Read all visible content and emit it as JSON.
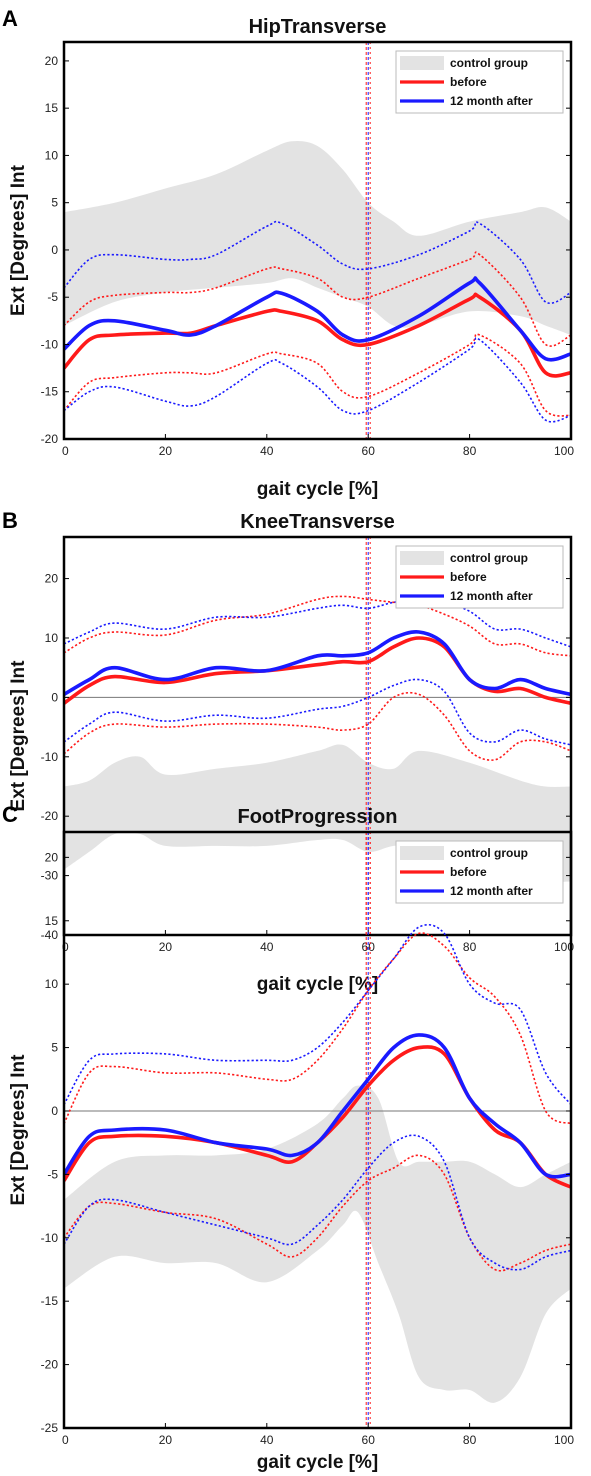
{
  "colors": {
    "before": "#ff1a1a",
    "after": "#1a1aff",
    "control": "#e3e3e3",
    "zero_line": "#777777",
    "frame": "#000000"
  },
  "chart_data": [
    {
      "panel": "A",
      "type": "line",
      "title": "HipTransverse",
      "xlabel": "gait cycle [%]",
      "ylabel": "Ext  [Degrees]  Int",
      "xlim": [
        0,
        100
      ],
      "ylim": [
        -20,
        22
      ],
      "xticks": [
        0,
        20,
        40,
        60,
        80,
        100
      ],
      "yticks": [
        -20,
        -15,
        -10,
        -5,
        0,
        5,
        10,
        15,
        20
      ],
      "grid": false,
      "legend": {
        "position": "top-right",
        "entries": [
          "control group",
          "before",
          "12 month after"
        ]
      },
      "vertical_marker_x": 60,
      "control_band": {
        "x": [
          0,
          10,
          20,
          30,
          40,
          45,
          50,
          55,
          60,
          65,
          70,
          80,
          90,
          95,
          100
        ],
        "upper": [
          4,
          5,
          6.5,
          8,
          10.5,
          11.5,
          11,
          8.5,
          5,
          3,
          1.5,
          3,
          4,
          4.5,
          3
        ],
        "lower": [
          -8,
          -5.5,
          -4.5,
          -4,
          -3.5,
          -3,
          -4,
          -5,
          -6,
          -8,
          -8,
          -6.5,
          -7,
          -8,
          -9
        ]
      },
      "series": [
        {
          "name": "before",
          "x": [
            0,
            5,
            10,
            20,
            25,
            30,
            40,
            43,
            50,
            55,
            60,
            70,
            80,
            82,
            90,
            95,
            100
          ],
          "mean": [
            -12.5,
            -9.5,
            -9,
            -8.8,
            -8.8,
            -8,
            -6.5,
            -6.5,
            -7.5,
            -9.5,
            -10,
            -8,
            -5.2,
            -5,
            -8.5,
            -13,
            -13
          ],
          "upper": [
            -8,
            -5.5,
            -4.8,
            -4.5,
            -4.5,
            -4,
            -2,
            -2,
            -3,
            -5,
            -5,
            -3,
            -1,
            -0.5,
            -5,
            -10,
            -9
          ],
          "lower": [
            -17,
            -14,
            -13.5,
            -13,
            -13,
            -13,
            -11,
            -11,
            -12,
            -15,
            -15.5,
            -13,
            -10,
            -9,
            -12,
            -17,
            -17.5
          ]
        },
        {
          "name": "12 month after",
          "x": [
            0,
            5,
            10,
            20,
            25,
            30,
            40,
            43,
            50,
            55,
            60,
            70,
            80,
            82,
            90,
            95,
            100
          ],
          "mean": [
            -10.5,
            -8,
            -7.5,
            -8.5,
            -9,
            -8,
            -5,
            -4.6,
            -6.5,
            -9,
            -9.5,
            -7,
            -3.5,
            -3.5,
            -8.5,
            -11.5,
            -11
          ],
          "upper": [
            -4,
            -1,
            -0.5,
            -1,
            -1,
            -0.5,
            2.5,
            2.8,
            0.5,
            -1.5,
            -2,
            -0.5,
            2,
            2.8,
            -1,
            -5.5,
            -4.5
          ],
          "lower": [
            -17,
            -15,
            -14.5,
            -16,
            -16.5,
            -15.5,
            -12,
            -12,
            -14.5,
            -17,
            -17,
            -14,
            -10.5,
            -9.5,
            -14,
            -18,
            -17.5
          ]
        }
      ]
    },
    {
      "panel": "B",
      "type": "line",
      "title": "KneeTransverse",
      "xlabel": "gait cycle [%]",
      "ylabel": "Ext  [Degrees]  Int",
      "xlim": [
        0,
        100
      ],
      "ylim": [
        -40,
        27
      ],
      "xticks": [
        0,
        20,
        40,
        60,
        80,
        100
      ],
      "yticks": [
        -40,
        -30,
        -20,
        -10,
        0,
        10,
        20
      ],
      "grid": false,
      "zero_line": true,
      "legend": {
        "position": "top-right",
        "entries": [
          "control group",
          "before",
          "12 month after"
        ]
      },
      "vertical_marker_x": 60,
      "control_band": {
        "x": [
          0,
          5,
          10,
          15,
          20,
          30,
          40,
          50,
          55,
          60,
          65,
          70,
          80,
          90,
          95,
          100
        ],
        "upper": [
          -15,
          -14,
          -11,
          -10,
          -13,
          -12,
          -11,
          -9,
          -8,
          -11,
          -12,
          -9,
          -11,
          -14,
          -15,
          -15
        ],
        "lower": [
          -29,
          -26,
          -23,
          -23,
          -25,
          -25,
          -25,
          -24,
          -24,
          -26,
          -25,
          -25,
          -27,
          -30,
          -31,
          -31
        ]
      },
      "series": [
        {
          "name": "before",
          "x": [
            0,
            5,
            10,
            20,
            30,
            40,
            50,
            55,
            60,
            65,
            70,
            75,
            80,
            85,
            90,
            95,
            100
          ],
          "mean": [
            -1,
            2,
            3.5,
            2.5,
            4,
            4.5,
            5.5,
            6,
            6,
            8.5,
            10,
            8.5,
            3,
            1,
            1.5,
            0,
            -1
          ],
          "upper": [
            7.5,
            10,
            11,
            10.5,
            13,
            14,
            16.5,
            17,
            16.5,
            16,
            15.5,
            14,
            12,
            9,
            9,
            7.5,
            7
          ],
          "lower": [
            -9.5,
            -6,
            -4.5,
            -5,
            -4.5,
            -4.5,
            -5,
            -5.5,
            -4.5,
            0,
            0.5,
            -3,
            -9,
            -10.5,
            -7.5,
            -7.5,
            -9
          ]
        },
        {
          "name": "12 month after",
          "x": [
            0,
            5,
            10,
            20,
            30,
            40,
            50,
            55,
            60,
            65,
            70,
            75,
            80,
            85,
            90,
            95,
            100
          ],
          "mean": [
            0.5,
            3,
            5,
            3,
            5,
            4.5,
            7,
            7,
            7.5,
            10,
            11,
            9,
            3,
            1.5,
            3,
            1.5,
            0.5
          ],
          "upper": [
            9,
            11,
            12.5,
            11.5,
            13.5,
            13.5,
            15,
            15.5,
            15,
            16,
            16.5,
            16,
            14.5,
            11.5,
            11.5,
            10,
            8.5
          ],
          "lower": [
            -7.5,
            -4.5,
            -2.5,
            -4,
            -3,
            -3.5,
            -2,
            -1.5,
            0,
            2,
            3,
            1,
            -6,
            -7.5,
            -5.5,
            -7,
            -8
          ]
        }
      ]
    },
    {
      "panel": "C",
      "type": "line",
      "title": "FootProgression",
      "xlabel": "gait cycle [%]",
      "ylabel": "Ext  [Degrees]  Int",
      "xlim": [
        0,
        100
      ],
      "ylim": [
        -25,
        22
      ],
      "xticks": [
        0,
        20,
        40,
        60,
        80,
        100
      ],
      "yticks": [
        -25,
        -20,
        -15,
        -10,
        -5,
        0,
        5,
        10,
        15,
        20
      ],
      "grid": false,
      "zero_line": true,
      "legend": {
        "position": "top-right",
        "entries": [
          "control group",
          "before",
          "12 month after"
        ]
      },
      "vertical_marker_x": 60,
      "control_band": {
        "x": [
          0,
          10,
          20,
          30,
          40,
          50,
          55,
          58,
          62,
          66,
          70,
          75,
          80,
          85,
          90,
          95,
          100
        ],
        "upper": [
          -7,
          -4,
          -3.5,
          -3.5,
          -3,
          -1,
          1,
          2,
          1,
          -4,
          -4,
          -4,
          -4,
          -5,
          -6,
          -5,
          -4
        ],
        "lower": [
          -14,
          -11.5,
          -12,
          -12,
          -13.5,
          -11,
          -9,
          -8,
          -12,
          -16,
          -21,
          -22,
          -22,
          -23,
          -21,
          -16,
          -14
        ]
      },
      "series": [
        {
          "name": "before",
          "x": [
            0,
            5,
            10,
            20,
            30,
            40,
            45,
            50,
            55,
            60,
            65,
            70,
            75,
            80,
            85,
            90,
            95,
            100
          ],
          "mean": [
            -5.5,
            -2.5,
            -2,
            -2,
            -2.5,
            -3.5,
            -4,
            -2.5,
            -0.5,
            2,
            4,
            5,
            4.5,
            1,
            -1.5,
            -2.5,
            -5,
            -6
          ],
          "upper": [
            -1,
            3,
            3.5,
            3,
            3,
            2.5,
            2.5,
            4,
            6.5,
            9.5,
            12,
            14,
            13,
            10.5,
            9,
            6,
            0,
            -1
          ],
          "lower": [
            -10,
            -7.5,
            -7.3,
            -8,
            -8.5,
            -10.5,
            -11.5,
            -10,
            -7.5,
            -5.5,
            -4.5,
            -3.5,
            -5,
            -10,
            -12.5,
            -12,
            -11,
            -10.5
          ]
        },
        {
          "name": "12 month after",
          "x": [
            0,
            5,
            10,
            20,
            30,
            40,
            45,
            50,
            55,
            60,
            65,
            70,
            75,
            80,
            85,
            90,
            95,
            100
          ],
          "mean": [
            -5,
            -2,
            -1.5,
            -1.5,
            -2.5,
            -3,
            -3.5,
            -2.5,
            0,
            2.5,
            5,
            6,
            5,
            1,
            -1,
            -2.5,
            -5,
            -5
          ],
          "upper": [
            0.5,
            4,
            4.5,
            4.5,
            4,
            4,
            4,
            5,
            7,
            9.5,
            12,
            14.5,
            14,
            10,
            8.5,
            8,
            3,
            0.5
          ],
          "lower": [
            -10.5,
            -7.5,
            -7,
            -8,
            -9,
            -10,
            -10.5,
            -9,
            -7,
            -4.5,
            -2.5,
            -2,
            -4,
            -10,
            -12,
            -12.5,
            -11.5,
            -11
          ]
        }
      ]
    }
  ]
}
